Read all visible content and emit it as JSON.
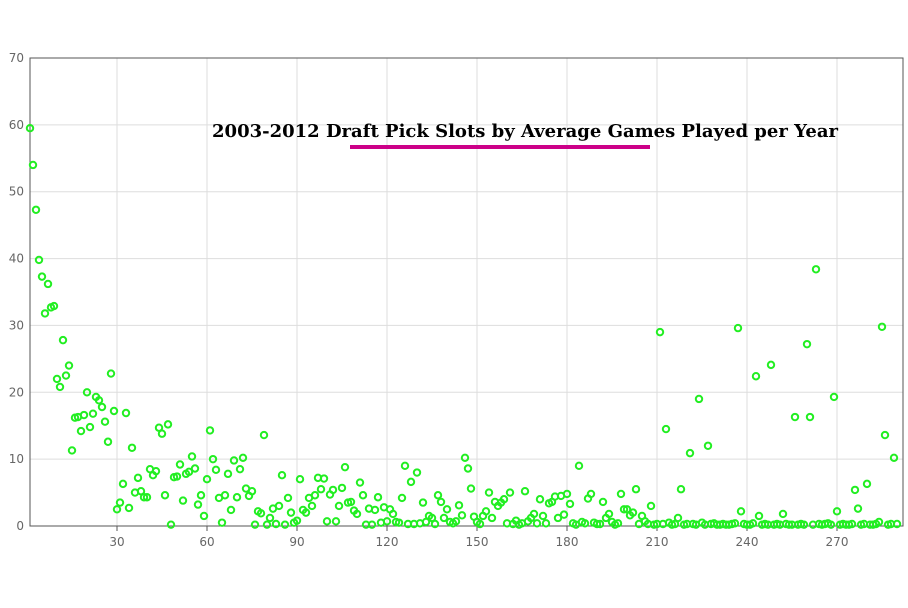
{
  "chart_data": {
    "type": "scatter",
    "title": "2003-2012 Draft Pick Slots by Average Games Played per Year",
    "xlabel": "",
    "ylabel": "",
    "xlim": [
      1,
      292
    ],
    "ylim": [
      0,
      70
    ],
    "x_ticks": [
      30,
      60,
      90,
      120,
      150,
      180,
      210,
      240,
      270
    ],
    "y_ticks": [
      0,
      10,
      20,
      30,
      40,
      50,
      60,
      70
    ],
    "grid": true,
    "legend": "none",
    "colors": {
      "point": "#22ee22",
      "title_underline": "#cc0088",
      "grid": "#dddddd",
      "axis": "#555555"
    },
    "points": [
      [
        1,
        59.5
      ],
      [
        2,
        54
      ],
      [
        3,
        47.3
      ],
      [
        4,
        39.8
      ],
      [
        5,
        37.3
      ],
      [
        6,
        31.8
      ],
      [
        7,
        36.2
      ],
      [
        8,
        32.7
      ],
      [
        9,
        32.9
      ],
      [
        10,
        22
      ],
      [
        11,
        20.8
      ],
      [
        12,
        27.8
      ],
      [
        13,
        22.5
      ],
      [
        14,
        24
      ],
      [
        15,
        11.3
      ],
      [
        16,
        16.2
      ],
      [
        17,
        16.3
      ],
      [
        18,
        14.2
      ],
      [
        19,
        16.6
      ],
      [
        20,
        20
      ],
      [
        21,
        14.8
      ],
      [
        22,
        16.8
      ],
      [
        23,
        19.3
      ],
      [
        24,
        18.8
      ],
      [
        25,
        17.8
      ],
      [
        26,
        15.6
      ],
      [
        27,
        12.6
      ],
      [
        28,
        22.8
      ],
      [
        29,
        17.2
      ],
      [
        30,
        2.5
      ],
      [
        31,
        3.5
      ],
      [
        32,
        6.3
      ],
      [
        33,
        16.9
      ],
      [
        34,
        2.7
      ],
      [
        35,
        11.7
      ],
      [
        36,
        5
      ],
      [
        37,
        7.2
      ],
      [
        38,
        5.2
      ],
      [
        39,
        4.3
      ],
      [
        40,
        4.3
      ],
      [
        41,
        8.5
      ],
      [
        42,
        7.6
      ],
      [
        43,
        8.2
      ],
      [
        44,
        14.7
      ],
      [
        45,
        13.8
      ],
      [
        46,
        4.6
      ],
      [
        47,
        15.2
      ],
      [
        48,
        0.2
      ],
      [
        49,
        7.3
      ],
      [
        50,
        7.4
      ],
      [
        51,
        9.2
      ],
      [
        52,
        3.8
      ],
      [
        53,
        7.8
      ],
      [
        54,
        8.1
      ],
      [
        55,
        10.4
      ],
      [
        56,
        8.6
      ],
      [
        57,
        3.2
      ],
      [
        58,
        4.6
      ],
      [
        59,
        1.5
      ],
      [
        60,
        7
      ],
      [
        61,
        14.3
      ],
      [
        62,
        10
      ],
      [
        63,
        8.4
      ],
      [
        64,
        4.2
      ],
      [
        65,
        0.5
      ],
      [
        66,
        4.6
      ],
      [
        67,
        7.8
      ],
      [
        68,
        2.4
      ],
      [
        69,
        9.8
      ],
      [
        70,
        4.3
      ],
      [
        71,
        8.5
      ],
      [
        72,
        10.2
      ],
      [
        73,
        5.6
      ],
      [
        74,
        4.5
      ],
      [
        75,
        5.2
      ],
      [
        76,
        0.2
      ],
      [
        77,
        2.2
      ],
      [
        78,
        1.9
      ],
      [
        79,
        13.6
      ],
      [
        80,
        0.2
      ],
      [
        81,
        1.2
      ],
      [
        82,
        2.6
      ],
      [
        83,
        0.3
      ],
      [
        84,
        3
      ],
      [
        85,
        7.6
      ],
      [
        86,
        0.2
      ],
      [
        87,
        4.2
      ],
      [
        88,
        2
      ],
      [
        89,
        0.5
      ],
      [
        90,
        0.8
      ],
      [
        91,
        7
      ],
      [
        92,
        2.4
      ],
      [
        93,
        2
      ],
      [
        94,
        4.2
      ],
      [
        95,
        3
      ],
      [
        96,
        4.6
      ],
      [
        97,
        7.2
      ],
      [
        98,
        5.5
      ],
      [
        99,
        7.1
      ],
      [
        100,
        0.7
      ],
      [
        101,
        4.7
      ],
      [
        102,
        5.4
      ],
      [
        103,
        0.7
      ],
      [
        104,
        3
      ],
      [
        105,
        5.7
      ],
      [
        106,
        8.8
      ],
      [
        107,
        3.5
      ],
      [
        108,
        3.6
      ],
      [
        109,
        2.3
      ],
      [
        110,
        1.8
      ],
      [
        111,
        6.5
      ],
      [
        112,
        4.6
      ],
      [
        113,
        0.2
      ],
      [
        114,
        2.6
      ],
      [
        115,
        0.2
      ],
      [
        116,
        2.4
      ],
      [
        117,
        4.3
      ],
      [
        118,
        0.5
      ],
      [
        119,
        2.8
      ],
      [
        120,
        0.7
      ],
      [
        121,
        2.5
      ],
      [
        122,
        1.8
      ],
      [
        123,
        0.6
      ],
      [
        124,
        0.5
      ],
      [
        125,
        4.2
      ],
      [
        126,
        9
      ],
      [
        127,
        0.3
      ],
      [
        128,
        6.6
      ],
      [
        129,
        0.3
      ],
      [
        130,
        8
      ],
      [
        131,
        0.4
      ],
      [
        132,
        3.5
      ],
      [
        133,
        0.6
      ],
      [
        134,
        1.5
      ],
      [
        135,
        1.2
      ],
      [
        136,
        0.3
      ],
      [
        137,
        4.6
      ],
      [
        138,
        3.6
      ],
      [
        139,
        1.2
      ],
      [
        140,
        2.5
      ],
      [
        141,
        0.6
      ],
      [
        142,
        0.4
      ],
      [
        143,
        0.7
      ],
      [
        144,
        3.1
      ],
      [
        145,
        1.6
      ],
      [
        146,
        10.2
      ],
      [
        147,
        8.6
      ],
      [
        148,
        5.6
      ],
      [
        149,
        1.4
      ],
      [
        150,
        0.6
      ],
      [
        151,
        0.3
      ],
      [
        152,
        1.5
      ],
      [
        153,
        2.2
      ],
      [
        154,
        5
      ],
      [
        155,
        1.2
      ],
      [
        156,
        3.6
      ],
      [
        157,
        3
      ],
      [
        158,
        3.5
      ],
      [
        159,
        4
      ],
      [
        160,
        0.4
      ],
      [
        161,
        5
      ],
      [
        162,
        0.3
      ],
      [
        163,
        0.8
      ],
      [
        164,
        0.2
      ],
      [
        165,
        0.4
      ],
      [
        166,
        5.2
      ],
      [
        167,
        0.7
      ],
      [
        168,
        1.2
      ],
      [
        169,
        1.8
      ],
      [
        170,
        0.4
      ],
      [
        171,
        4
      ],
      [
        172,
        1.5
      ],
      [
        173,
        0.4
      ],
      [
        174,
        3.4
      ],
      [
        175,
        3.6
      ],
      [
        176,
        4.4
      ],
      [
        177,
        1.2
      ],
      [
        178,
        4.5
      ],
      [
        179,
        1.7
      ],
      [
        180,
        4.8
      ],
      [
        181,
        3.3
      ],
      [
        182,
        0.4
      ],
      [
        183,
        0.2
      ],
      [
        184,
        9
      ],
      [
        185,
        0.6
      ],
      [
        186,
        0.4
      ],
      [
        187,
        4.1
      ],
      [
        188,
        4.8
      ],
      [
        189,
        0.5
      ],
      [
        190,
        0.3
      ],
      [
        191,
        0.3
      ],
      [
        192,
        3.6
      ],
      [
        193,
        1.2
      ],
      [
        194,
        1.8
      ],
      [
        195,
        0.6
      ],
      [
        196,
        0.2
      ],
      [
        197,
        0.4
      ],
      [
        198,
        4.8
      ],
      [
        199,
        2.5
      ],
      [
        200,
        2.5
      ],
      [
        201,
        1.6
      ],
      [
        202,
        2
      ],
      [
        203,
        5.5
      ],
      [
        204,
        0.3
      ],
      [
        205,
        1.5
      ],
      [
        206,
        0.7
      ],
      [
        207,
        0.3
      ],
      [
        208,
        3
      ],
      [
        209,
        0.2
      ],
      [
        210,
        0.3
      ],
      [
        211,
        29
      ],
      [
        212,
        0.3
      ],
      [
        213,
        14.5
      ],
      [
        214,
        0.5
      ],
      [
        215,
        0.2
      ],
      [
        216,
        0.3
      ],
      [
        217,
        1.2
      ],
      [
        218,
        5.5
      ],
      [
        219,
        0.2
      ],
      [
        220,
        0.3
      ],
      [
        221,
        10.9
      ],
      [
        222,
        0.3
      ],
      [
        223,
        0.2
      ],
      [
        224,
        19
      ],
      [
        225,
        0.5
      ],
      [
        226,
        0.2
      ],
      [
        227,
        12
      ],
      [
        228,
        0.3
      ],
      [
        229,
        0.4
      ],
      [
        230,
        0.2
      ],
      [
        231,
        0.2
      ],
      [
        232,
        0.3
      ],
      [
        233,
        0.2
      ],
      [
        234,
        0.2
      ],
      [
        235,
        0.3
      ],
      [
        236,
        0.4
      ],
      [
        237,
        29.6
      ],
      [
        238,
        2.2
      ],
      [
        239,
        0.3
      ],
      [
        240,
        0.2
      ],
      [
        241,
        0.2
      ],
      [
        242,
        0.4
      ],
      [
        243,
        22.4
      ],
      [
        244,
        1.5
      ],
      [
        245,
        0.2
      ],
      [
        246,
        0.3
      ],
      [
        247,
        0.2
      ],
      [
        248,
        24.1
      ],
      [
        249,
        0.2
      ],
      [
        250,
        0.3
      ],
      [
        251,
        0.2
      ],
      [
        252,
        1.8
      ],
      [
        253,
        0.3
      ],
      [
        254,
        0.2
      ],
      [
        255,
        0.2
      ],
      [
        256,
        16.3
      ],
      [
        257,
        0.2
      ],
      [
        258,
        0.3
      ],
      [
        259,
        0.2
      ],
      [
        260,
        27.2
      ],
      [
        261,
        16.3
      ],
      [
        262,
        0.2
      ],
      [
        263,
        38.4
      ],
      [
        264,
        0.3
      ],
      [
        265,
        0.2
      ],
      [
        266,
        0.3
      ],
      [
        267,
        0.4
      ],
      [
        268,
        0.2
      ],
      [
        269,
        19.3
      ],
      [
        270,
        2.2
      ],
      [
        271,
        0.2
      ],
      [
        272,
        0.3
      ],
      [
        273,
        0.2
      ],
      [
        274,
        0.2
      ],
      [
        275,
        0.3
      ],
      [
        276,
        5.4
      ],
      [
        277,
        2.6
      ],
      [
        278,
        0.2
      ],
      [
        279,
        0.3
      ],
      [
        280,
        6.3
      ],
      [
        281,
        0.2
      ],
      [
        282,
        0.2
      ],
      [
        283,
        0.3
      ],
      [
        284,
        0.6
      ],
      [
        285,
        29.8
      ],
      [
        286,
        13.6
      ],
      [
        287,
        0.2
      ],
      [
        288,
        0.3
      ],
      [
        289,
        10.2
      ],
      [
        290,
        0.3
      ]
    ]
  }
}
